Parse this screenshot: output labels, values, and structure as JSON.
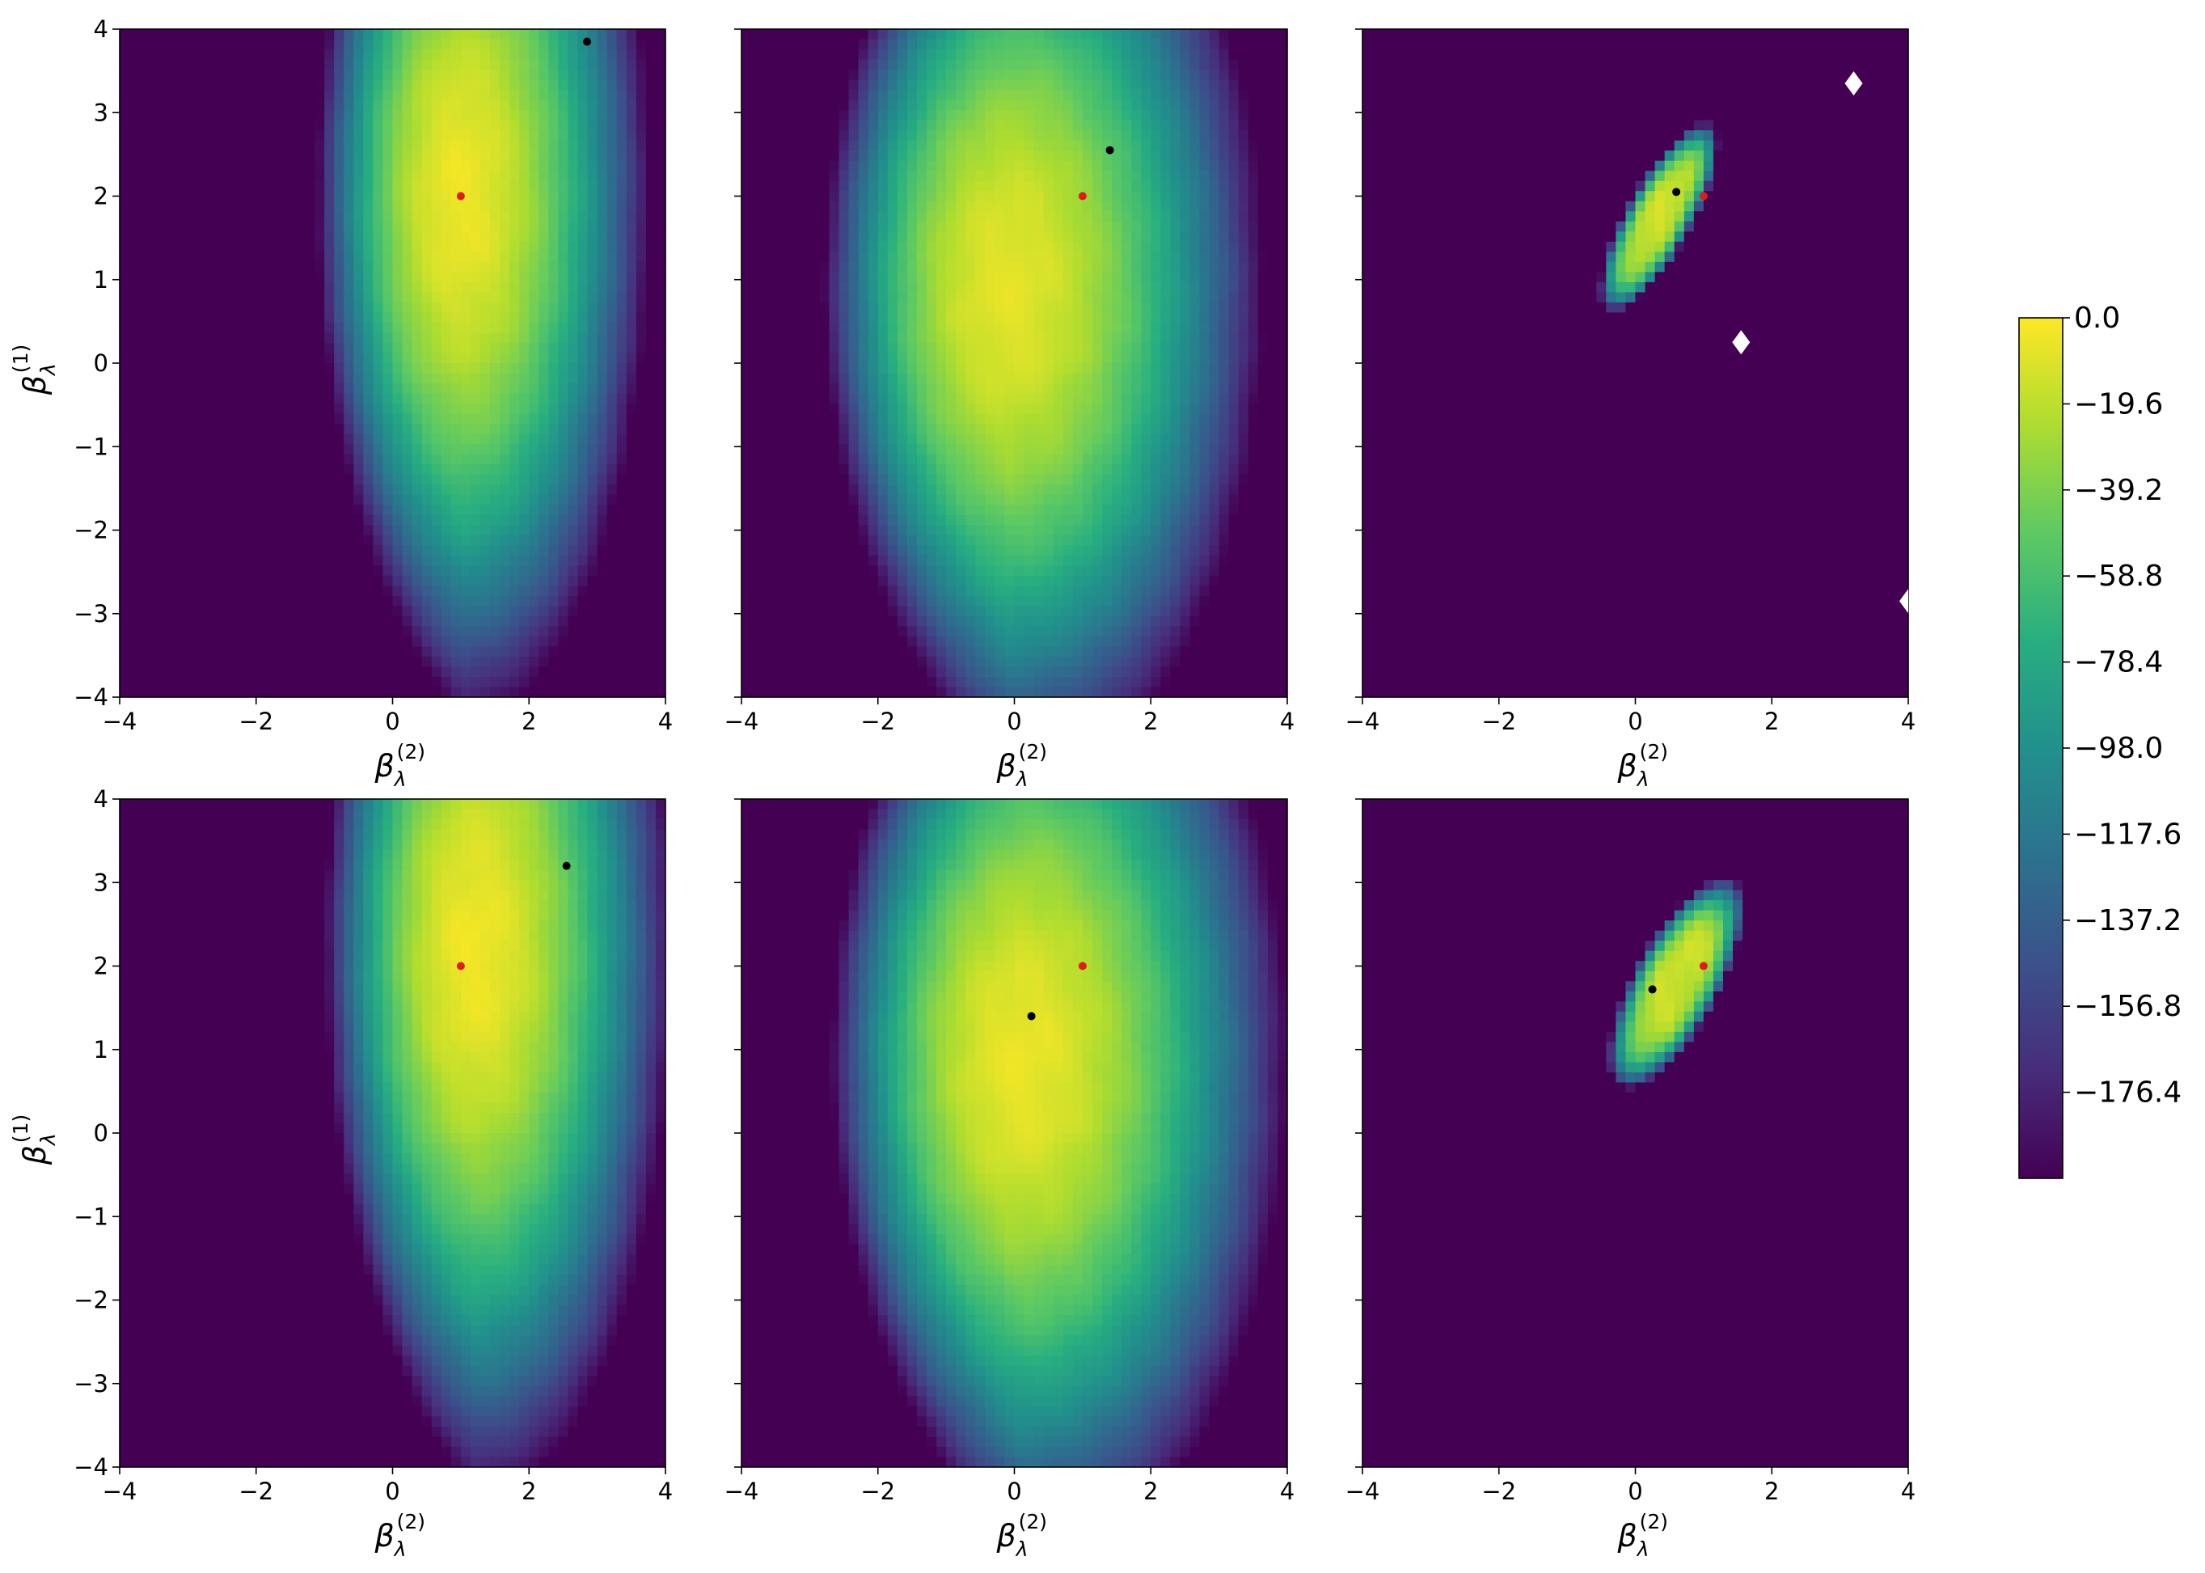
{
  "chart_data": [
    {
      "type": "heatmap",
      "title": "",
      "xlabel": "β",
      "xlabel_sup": "(2)",
      "xlabel_sub": "λ",
      "ylabel": "β",
      "ylabel_sup": "(1)",
      "ylabel_sub": "λ",
      "xlim": [
        -4,
        4
      ],
      "ylim": [
        -4,
        4
      ],
      "x_ticks": [
        "−4",
        "−2",
        "0",
        "2",
        "4"
      ],
      "y_ticks": [
        "−4",
        "−3",
        "−2",
        "−1",
        "0",
        "1",
        "2",
        "3",
        "4"
      ],
      "surface": "broad",
      "peak": [
        1.0,
        2.0
      ],
      "spread": [
        2.2,
        5.0
      ],
      "floor": -190,
      "ceiling": -5,
      "red_point": [
        1.0,
        2.0
      ],
      "black_point": [
        2.85,
        3.85
      ],
      "white_diamonds": []
    },
    {
      "type": "heatmap",
      "title": "",
      "xlabel": "β",
      "xlabel_sup": "(2)",
      "xlabel_sub": "λ",
      "ylabel": "",
      "ylabel_sup": "",
      "ylabel_sub": "",
      "xlim": [
        -4,
        4
      ],
      "ylim": [
        -4,
        4
      ],
      "x_ticks": [
        "−4",
        "−2",
        "0",
        "2",
        "4"
      ],
      "y_ticks": [],
      "surface": "wide",
      "peak": [
        -0.1,
        0.9
      ],
      "spread": [
        3.0,
        4.8
      ],
      "floor": -175,
      "ceiling": -8,
      "red_point": [
        1.0,
        2.0
      ],
      "black_point": [
        1.4,
        2.55
      ],
      "white_diamonds": []
    },
    {
      "type": "heatmap",
      "title": "",
      "xlabel": "β",
      "xlabel_sup": "(2)",
      "xlabel_sub": "λ",
      "ylabel": "",
      "ylabel_sup": "",
      "ylabel_sub": "",
      "xlim": [
        -4,
        4
      ],
      "ylim": [
        -4,
        4
      ],
      "x_ticks": [
        "−4",
        "−2",
        "0",
        "2",
        "4"
      ],
      "y_ticks": [],
      "surface": "ridge",
      "peak": [
        0.35,
        1.75
      ],
      "spread": [
        0.5,
        1.5
      ],
      "floor": -196,
      "ceiling": -15,
      "red_point": [
        1.0,
        2.0
      ],
      "black_point": [
        0.6,
        2.05
      ],
      "white_diamonds": [
        [
          3.2,
          3.35
        ],
        [
          1.55,
          0.25
        ],
        [
          4.0,
          -2.85
        ]
      ]
    },
    {
      "type": "heatmap",
      "title": "",
      "xlabel": "β",
      "xlabel_sup": "(2)",
      "xlabel_sub": "λ",
      "ylabel": "β",
      "ylabel_sup": "(1)",
      "ylabel_sub": "λ",
      "xlim": [
        -4,
        4
      ],
      "ylim": [
        -4,
        4
      ],
      "x_ticks": [
        "−4",
        "−2",
        "0",
        "2",
        "4"
      ],
      "y_ticks": [
        "−4",
        "−3",
        "−2",
        "−1",
        "0",
        "1",
        "2",
        "3",
        "4"
      ],
      "surface": "broad",
      "peak": [
        1.2,
        2.2
      ],
      "spread": [
        2.3,
        5.2
      ],
      "floor": -190,
      "ceiling": -4,
      "red_point": [
        1.0,
        2.0
      ],
      "black_point": [
        2.55,
        3.2
      ],
      "white_diamonds": []
    },
    {
      "type": "heatmap",
      "title": "",
      "xlabel": "β",
      "xlabel_sup": "(2)",
      "xlabel_sub": "λ",
      "ylabel": "",
      "ylabel_sup": "",
      "ylabel_sub": "",
      "xlim": [
        -4,
        4
      ],
      "ylim": [
        -4,
        4
      ],
      "x_ticks": [
        "−4",
        "−2",
        "0",
        "2",
        "4"
      ],
      "y_ticks": [],
      "surface": "wide",
      "peak": [
        0.1,
        0.9
      ],
      "spread": [
        3.1,
        4.9
      ],
      "floor": -178,
      "ceiling": -6,
      "red_point": [
        1.0,
        2.0
      ],
      "black_point": [
        0.25,
        1.4
      ],
      "white_diamonds": []
    },
    {
      "type": "heatmap",
      "title": "",
      "xlabel": "β",
      "xlabel_sup": "(2)",
      "xlabel_sub": "λ",
      "ylabel": "",
      "ylabel_sup": "",
      "ylabel_sub": "",
      "xlim": [
        -4,
        4
      ],
      "ylim": [
        -4,
        4
      ],
      "x_ticks": [
        "−4",
        "−2",
        "0",
        "2",
        "4"
      ],
      "y_ticks": [],
      "surface": "ridge",
      "peak": [
        0.6,
        1.8
      ],
      "spread": [
        0.65,
        1.65
      ],
      "floor": -196,
      "ceiling": -15,
      "red_point": [
        1.0,
        2.0
      ],
      "black_point": [
        0.25,
        1.72
      ],
      "white_diamonds": []
    }
  ],
  "colorbar": {
    "ticks": [
      "0.0",
      "−19.6",
      "−39.2",
      "−58.8",
      "−78.4",
      "−98.0",
      "−117.6",
      "−137.2",
      "−156.8",
      "−176.4"
    ],
    "tick_values": [
      0.0,
      -19.6,
      -39.2,
      -58.8,
      -78.4,
      -98.0,
      -117.6,
      -137.2,
      -156.8,
      -176.4
    ],
    "vmin": -196.0,
    "vmax": 0.0,
    "colormap": [
      "#440154",
      "#472d7b",
      "#3b528b",
      "#2c728e",
      "#21918c",
      "#28ae80",
      "#5ec962",
      "#addc30",
      "#fde725"
    ]
  },
  "colors": {
    "red_point": "#e31a1c",
    "black_point": "#000000",
    "diamond": "#ffffff"
  }
}
